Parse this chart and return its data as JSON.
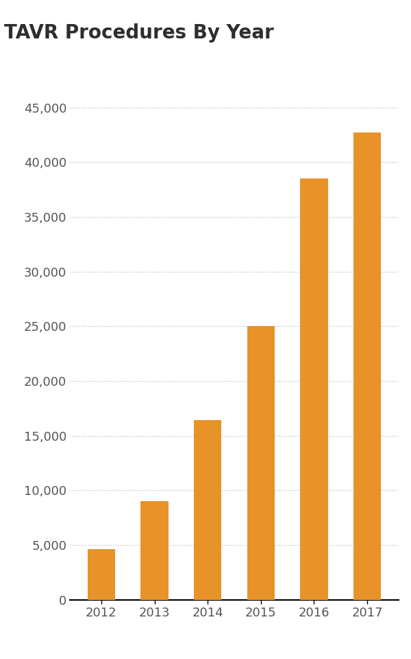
{
  "title": "TAVR Procedures By Year",
  "categories": [
    "2012",
    "2013",
    "2014",
    "2015",
    "2016",
    "2017"
  ],
  "values": [
    4600,
    9000,
    16400,
    25000,
    38500,
    42700
  ],
  "bar_color": "#E8922A",
  "ylim": [
    0,
    47000
  ],
  "yticks": [
    0,
    5000,
    10000,
    15000,
    20000,
    25000,
    30000,
    35000,
    40000,
    45000
  ],
  "title_fontsize": 20,
  "tick_fontsize": 13,
  "background_color": "#ffffff",
  "title_color": "#2e2e2e",
  "tick_color": "#555555",
  "grid_color": "#bbbbbb",
  "bar_width": 0.52
}
